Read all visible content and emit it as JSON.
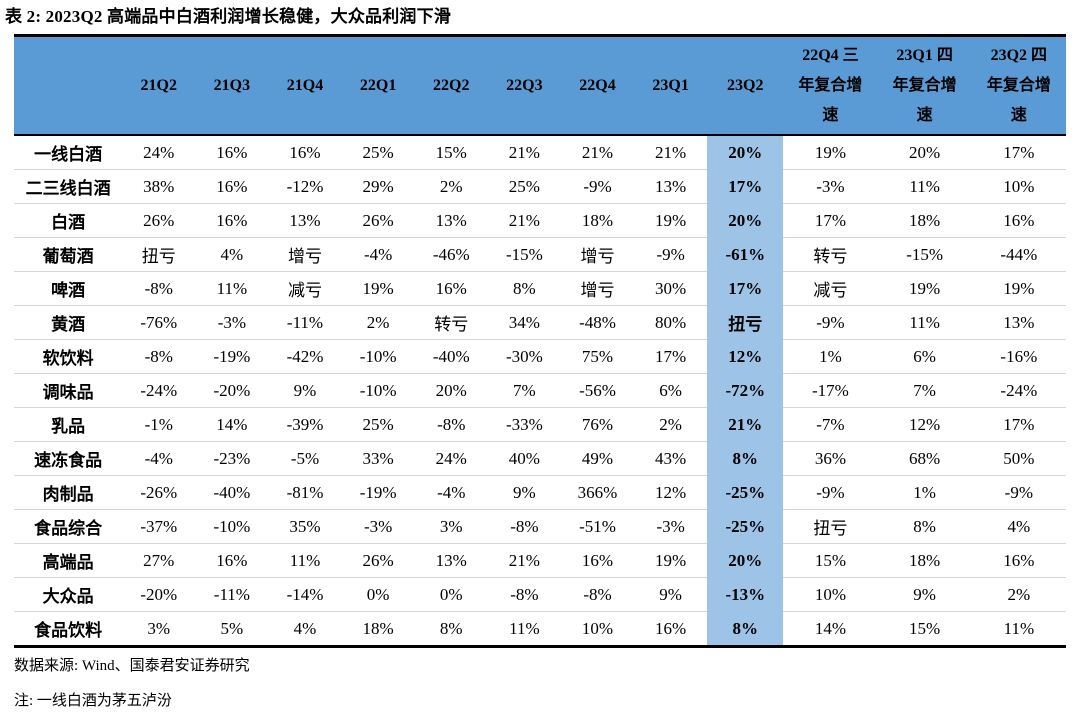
{
  "title": "表 2:  2023Q2 高端品中白酒利润增长稳健，大众品利润下滑",
  "colors": {
    "header_bg": "#5B9BD5",
    "highlight_bg": "#9DC3E6",
    "row_divider": "#D6D6D6",
    "border": "#000000"
  },
  "table": {
    "highlight_column": "23Q2",
    "columns": [
      "",
      "21Q2",
      "21Q3",
      "21Q4",
      "22Q1",
      "22Q2",
      "22Q3",
      "22Q4",
      "23Q1",
      "23Q2",
      "22Q4 三年复合增速",
      "23Q1 四年复合增速",
      "23Q2 四年复合增速"
    ],
    "rows": [
      {
        "label": "一线白酒",
        "values": [
          "24%",
          "16%",
          "16%",
          "25%",
          "15%",
          "21%",
          "21%",
          "21%",
          "20%",
          "19%",
          "20%",
          "17%"
        ]
      },
      {
        "label": "二三线白酒",
        "values": [
          "38%",
          "16%",
          "-12%",
          "29%",
          "2%",
          "25%",
          "-9%",
          "13%",
          "17%",
          "-3%",
          "11%",
          "10%"
        ]
      },
      {
        "label": "白酒",
        "values": [
          "26%",
          "16%",
          "13%",
          "26%",
          "13%",
          "21%",
          "18%",
          "19%",
          "20%",
          "17%",
          "18%",
          "16%"
        ]
      },
      {
        "label": "葡萄酒",
        "values": [
          "扭亏",
          "4%",
          "增亏",
          "-4%",
          "-46%",
          "-15%",
          "增亏",
          "-9%",
          "-61%",
          "转亏",
          "-15%",
          "-44%"
        ]
      },
      {
        "label": "啤酒",
        "values": [
          "-8%",
          "11%",
          "减亏",
          "19%",
          "16%",
          "8%",
          "增亏",
          "30%",
          "17%",
          "减亏",
          "19%",
          "19%"
        ]
      },
      {
        "label": "黄酒",
        "values": [
          "-76%",
          "-3%",
          "-11%",
          "2%",
          "转亏",
          "34%",
          "-48%",
          "80%",
          "扭亏",
          "-9%",
          "11%",
          "13%"
        ]
      },
      {
        "label": "软饮料",
        "values": [
          "-8%",
          "-19%",
          "-42%",
          "-10%",
          "-40%",
          "-30%",
          "75%",
          "17%",
          "12%",
          "1%",
          "6%",
          "-16%"
        ]
      },
      {
        "label": "调味品",
        "values": [
          "-24%",
          "-20%",
          "9%",
          "-10%",
          "20%",
          "7%",
          "-56%",
          "6%",
          "-72%",
          "-17%",
          "7%",
          "-24%"
        ]
      },
      {
        "label": "乳品",
        "values": [
          "-1%",
          "14%",
          "-39%",
          "25%",
          "-8%",
          "-33%",
          "76%",
          "2%",
          "21%",
          "-7%",
          "12%",
          "17%"
        ]
      },
      {
        "label": "速冻食品",
        "values": [
          "-4%",
          "-23%",
          "-5%",
          "33%",
          "24%",
          "40%",
          "49%",
          "43%",
          "8%",
          "36%",
          "68%",
          "50%"
        ]
      },
      {
        "label": "肉制品",
        "values": [
          "-26%",
          "-40%",
          "-81%",
          "-19%",
          "-4%",
          "9%",
          "366%",
          "12%",
          "-25%",
          "-9%",
          "1%",
          "-9%"
        ]
      },
      {
        "label": "食品综合",
        "values": [
          "-37%",
          "-10%",
          "35%",
          "-3%",
          "3%",
          "-8%",
          "-51%",
          "-3%",
          "-25%",
          "扭亏",
          "8%",
          "4%"
        ]
      },
      {
        "label": "高端品",
        "values": [
          "27%",
          "16%",
          "11%",
          "26%",
          "13%",
          "21%",
          "16%",
          "19%",
          "20%",
          "15%",
          "18%",
          "16%"
        ]
      },
      {
        "label": "大众品",
        "values": [
          "-20%",
          "-11%",
          "-14%",
          "0%",
          "0%",
          "-8%",
          "-8%",
          "9%",
          "-13%",
          "10%",
          "9%",
          "2%"
        ]
      },
      {
        "label": "食品饮料",
        "values": [
          "3%",
          "5%",
          "4%",
          "18%",
          "8%",
          "11%",
          "10%",
          "16%",
          "8%",
          "14%",
          "15%",
          "11%"
        ]
      }
    ]
  },
  "footer": {
    "source": "数据来源:  Wind、国泰君安证券研究",
    "note": "注:  一线白酒为茅五泸汾"
  }
}
